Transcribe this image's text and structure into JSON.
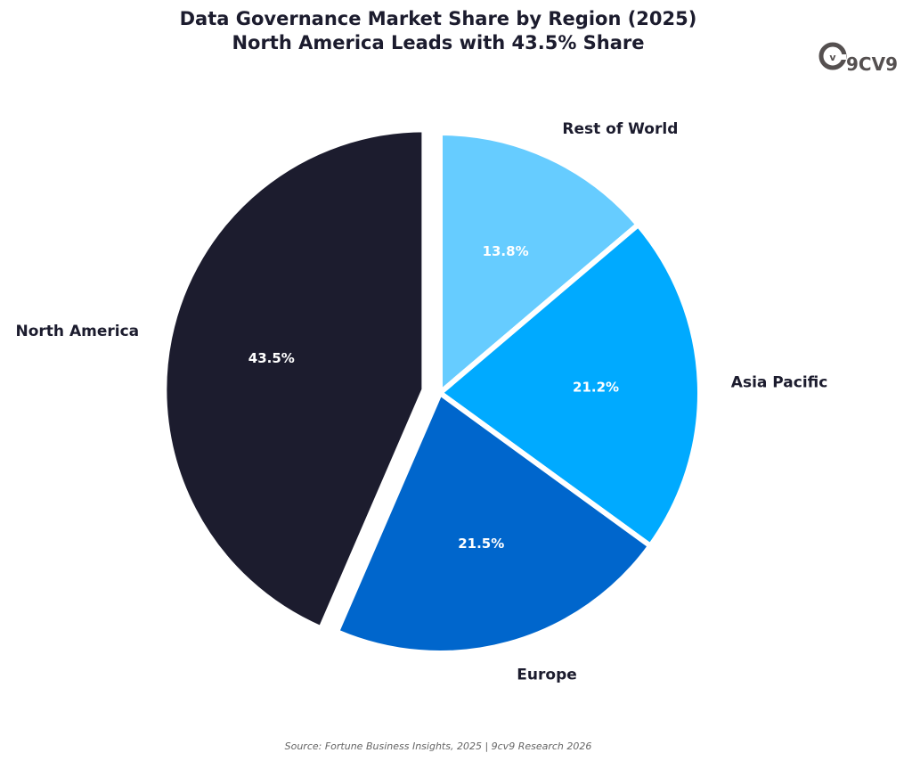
{
  "header": {
    "title_line1": "Data Governance Market Share by Region (2025)",
    "title_line2": "North America Leads with 43.5% Share"
  },
  "logo": {
    "text": "9CV9",
    "mark": "v"
  },
  "chart_data": {
    "type": "pie",
    "title": "Data Governance Market Share by Region (2025)",
    "subtitle": "North America Leads with 43.5% Share",
    "start_angle_deg": 90,
    "direction": "clockwise",
    "slices": [
      {
        "label": "Rest of World",
        "value": 13.8,
        "display": "13.8%",
        "color": "#66ccff",
        "explode": false
      },
      {
        "label": "Asia Pacific",
        "value": 21.2,
        "display": "21.2%",
        "color": "#00aaff",
        "explode": false
      },
      {
        "label": "Europe",
        "value": 21.5,
        "display": "21.5%",
        "color": "#0066cc",
        "explode": false
      },
      {
        "label": "North America",
        "value": 43.5,
        "display": "43.5%",
        "color": "#1c1c2e",
        "explode": true
      }
    ]
  },
  "footer": {
    "source": "Source: Fortune Business Insights, 2025 | 9cv9 Research 2026"
  }
}
